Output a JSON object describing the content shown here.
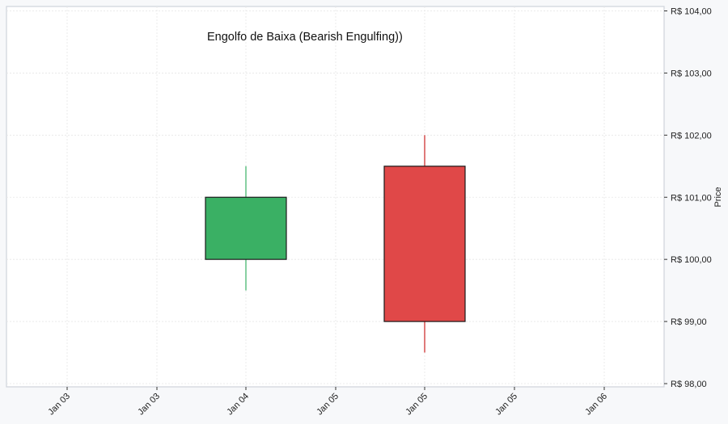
{
  "chart_data": {
    "type": "candlestick",
    "title": "Engolfo de Baixa (Bearish Engulfing))",
    "xlabel": "",
    "ylabel": "Price",
    "ylim": [
      98,
      104
    ],
    "y_ticks": [
      98,
      99,
      100,
      101,
      102,
      103,
      104
    ],
    "y_tick_labels": [
      "R$ 98,00",
      "R$ 99,00",
      "R$ 100,00",
      "R$ 101,00",
      "R$ 102,00",
      "R$ 103,00",
      "R$ 104,00"
    ],
    "x_tick_labels": [
      "Jan 03",
      "Jan 03",
      "Jan 04",
      "Jan 05",
      "Jan 05",
      "Jan 05",
      "Jan 06"
    ],
    "grid": true,
    "y_axis_position": "right",
    "candles": [
      {
        "date": "Jan 04",
        "open": 100.0,
        "high": 101.5,
        "low": 99.5,
        "close": 101.0,
        "direction": "up"
      },
      {
        "date": "Jan 05",
        "open": 101.5,
        "high": 102.0,
        "low": 98.5,
        "close": 99.0,
        "direction": "down"
      }
    ],
    "colors": {
      "up": "#3ab064",
      "down": "#e04848",
      "up_wick": "#3ab064",
      "down_wick": "#cc2222",
      "body_edge": "#1a1a1a",
      "plot_bg": "#ffffff",
      "figure_bg": "#f7f8fa",
      "grid": "#e6e6e6",
      "frame": "#cfd3da"
    }
  }
}
